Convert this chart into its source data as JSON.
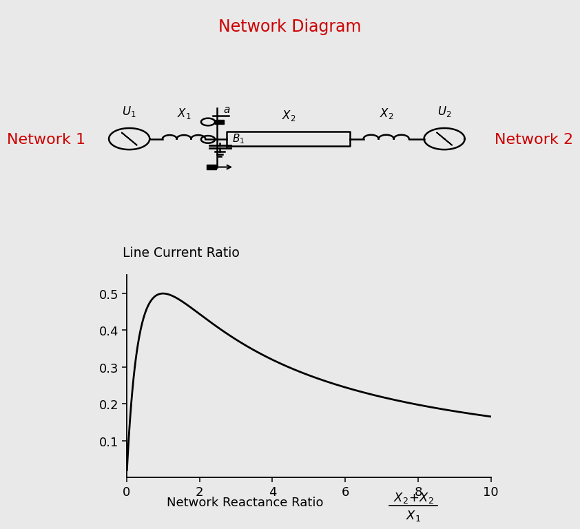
{
  "title": "Network Diagram",
  "title_color": "#cc0000",
  "title_fontsize": 17,
  "network1_label": "Network 1",
  "network2_label": "Network 2",
  "network_label_color": "#cc0000",
  "network_label_fontsize": 16,
  "ylabel": "Line Current Ratio",
  "xlabel_text": "Network Reactance Ratio ",
  "xlim": [
    0,
    10
  ],
  "ylim": [
    0,
    0.55
  ],
  "xticks": [
    0,
    2,
    4,
    6,
    8,
    10
  ],
  "yticks": [
    0.1,
    0.2,
    0.3,
    0.4,
    0.5
  ],
  "background_color": "#e9e9e9",
  "curve_color": "#000000",
  "curve_lw": 2.0,
  "axes_color": "#000000"
}
